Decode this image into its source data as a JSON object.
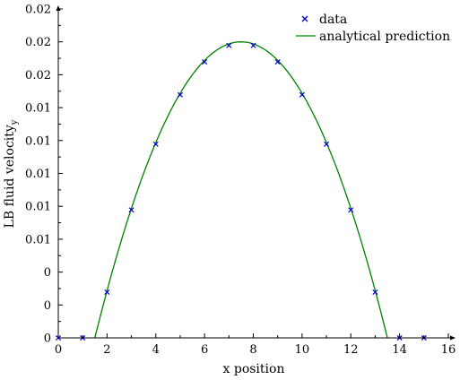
{
  "chart_data": {
    "type": "scatter",
    "xlabel": "x position",
    "ylabel": "LB fluid velocity",
    "ylabel_subscript": "y",
    "xlim": [
      0,
      16
    ],
    "ylim": [
      0,
      0.02
    ],
    "xticks": [
      0,
      2,
      4,
      6,
      8,
      10,
      12,
      14,
      16
    ],
    "xtick_labels": [
      "0",
      "2",
      "4",
      "6",
      "8",
      "10",
      "12",
      "14",
      "16"
    ],
    "yticks": [
      0,
      0.002,
      0.004,
      0.006,
      0.008,
      0.01,
      0.012,
      0.014,
      0.016,
      0.018,
      0.02
    ],
    "ytick_labels": [
      "0",
      "0",
      "0",
      "0.01",
      "0.01",
      "0.01",
      "0.01",
      "0.01",
      "0.02",
      "0.02",
      "0.02"
    ],
    "grid": false,
    "legend_position": "top-right",
    "series": [
      {
        "name": "data",
        "kind": "markers",
        "marker": "x",
        "color": "#0000cc",
        "x": [
          0,
          1,
          2,
          3,
          4,
          5,
          6,
          7,
          8,
          9,
          10,
          11,
          12,
          13,
          14,
          15
        ],
        "y": [
          0,
          0,
          0.00278,
          0.00778,
          0.01178,
          0.01478,
          0.01678,
          0.01778,
          0.01778,
          0.01678,
          0.01478,
          0.01178,
          0.00778,
          0.00278,
          0,
          0
        ]
      },
      {
        "name": "analytical prediction",
        "kind": "line",
        "color": "#008000",
        "function": "parabola",
        "x_range": [
          1.5,
          13.5
        ],
        "peak_x": 7.5,
        "peak_y": 0.018
      }
    ]
  }
}
